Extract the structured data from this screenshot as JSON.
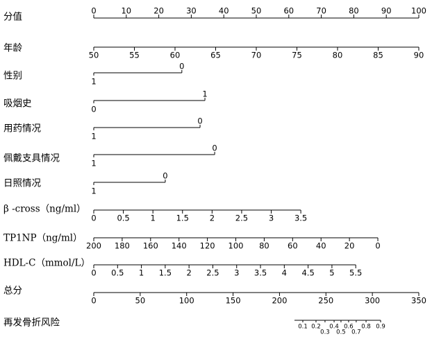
{
  "chart_data": {
    "type": "nomogram",
    "points": {
      "name": "分值",
      "xlim": [
        0,
        100
      ],
      "xticks": [
        0,
        10,
        20,
        30,
        40,
        50,
        60,
        70,
        80,
        90,
        100
      ]
    },
    "variables": [
      {
        "name": "年龄",
        "kind": "continuous",
        "xlim": [
          50,
          90
        ],
        "points": [
          0,
          100
        ],
        "xticks": [
          50,
          55,
          60,
          65,
          70,
          75,
          80,
          85,
          90
        ]
      },
      {
        "name": "性别",
        "kind": "categorical",
        "levels": [
          {
            "value": 0,
            "points": 27.1
          },
          {
            "value": 1,
            "points": 0
          }
        ]
      },
      {
        "name": "吸烟史",
        "kind": "categorical",
        "levels": [
          {
            "value": 1,
            "points": 34.2
          },
          {
            "value": 0,
            "points": 0
          }
        ]
      },
      {
        "name": "用药情况",
        "kind": "categorical",
        "levels": [
          {
            "value": 0,
            "points": 32.7
          },
          {
            "value": 1,
            "points": 0
          }
        ]
      },
      {
        "name": "佩戴支具情况",
        "kind": "categorical",
        "levels": [
          {
            "value": 0,
            "points": 37.2
          },
          {
            "value": 1,
            "points": 0
          }
        ]
      },
      {
        "name": "日照情况",
        "kind": "categorical",
        "levels": [
          {
            "value": 0,
            "points": 22.0
          },
          {
            "value": 1,
            "points": 0
          }
        ]
      },
      {
        "name": "β -cross（ng/ml）",
        "kind": "continuous",
        "xlim": [
          0,
          3.5
        ],
        "points": [
          0,
          63.7
        ],
        "xticks": [
          0,
          0.5,
          1,
          1.5,
          2,
          2.5,
          3,
          3.5
        ]
      },
      {
        "name": "TP1NP（ng/ml）",
        "kind": "continuous",
        "xlim": [
          200,
          0
        ],
        "points": [
          0,
          87.4
        ],
        "xticks": [
          200,
          180,
          160,
          140,
          120,
          100,
          80,
          60,
          40,
          20,
          0
        ]
      },
      {
        "name": "HDL-C（mmol/L）",
        "kind": "continuous",
        "xlim": [
          0,
          5.5
        ],
        "points": [
          0,
          80.6
        ],
        "xticks": [
          0,
          0.5,
          1,
          1.5,
          2,
          2.5,
          3,
          3.5,
          4,
          4.5,
          5,
          5.5
        ]
      }
    ],
    "total": {
      "name": "总分",
      "xlim": [
        0,
        350
      ],
      "xticks": [
        0,
        50,
        100,
        150,
        200,
        250,
        300,
        350
      ]
    },
    "risk": {
      "name": "再发骨折风险",
      "ticks": [
        {
          "value": 0.1,
          "total": 225.1
        },
        {
          "value": 0.2,
          "total": 239.3
        },
        {
          "value": 0.3,
          "total": 249.0
        },
        {
          "value": 0.4,
          "total": 258.8
        },
        {
          "value": 0.5,
          "total": 266.2
        },
        {
          "value": 0.6,
          "total": 274.4
        },
        {
          "value": 0.7,
          "total": 282.6
        },
        {
          "value": 0.8,
          "total": 293.2
        },
        {
          "value": 0.9,
          "total": 308.9
        }
      ]
    }
  }
}
